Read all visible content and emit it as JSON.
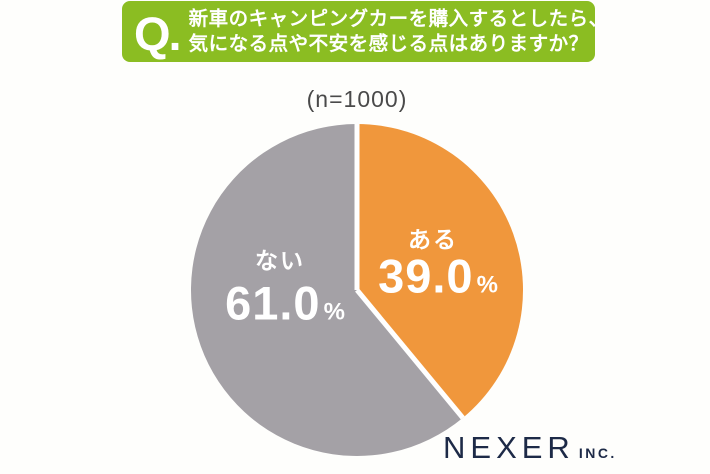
{
  "header": {
    "q_label": "Q.",
    "question_line1": "新車のキャンピングカーを購入するとしたら、",
    "question_line2": "気になる点や不安を感じる点はありますか？",
    "bg_color": "#8bbd22",
    "text_color": "#ffffff"
  },
  "subtitle": "(n=1000)",
  "chart_data": {
    "type": "pie",
    "title": "(n=1000)",
    "sample_size": 1000,
    "start_angle_deg": -90,
    "direction": "clockwise",
    "divider_color": "#ffffff",
    "legend_position": "inside",
    "slices": [
      {
        "label": "ある",
        "value": 39.0,
        "display": "39.0",
        "unit": "%",
        "color": "#f0973c"
      },
      {
        "label": "ない",
        "value": 61.0,
        "display": "61.0",
        "unit": "%",
        "color": "#a4a1a6"
      }
    ]
  },
  "footer": {
    "brand": "NEXER",
    "brand_suffix": "INC.",
    "brand_color": "#1d2a47"
  }
}
